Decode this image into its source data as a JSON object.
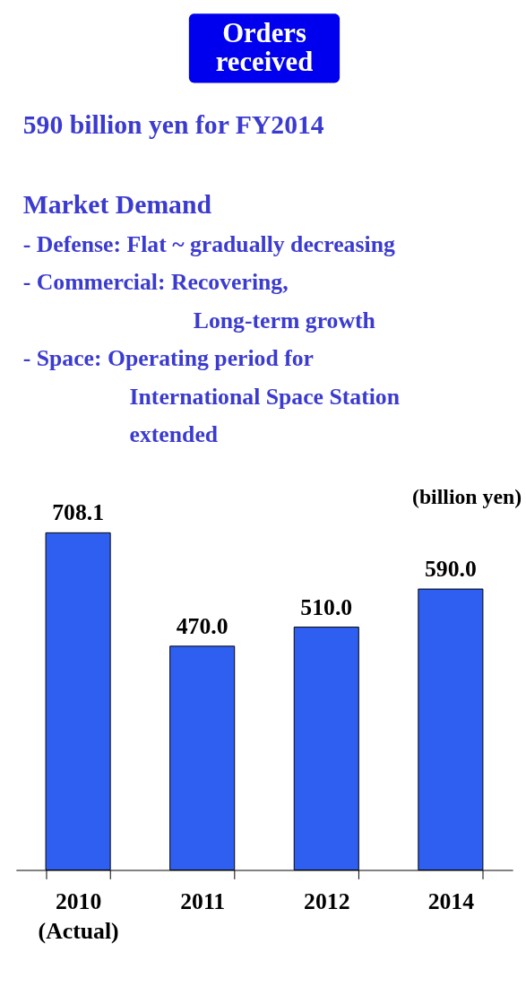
{
  "chart_data": {
    "type": "bar",
    "title": "Orders received",
    "subtitle": "590 billion yen for FY2014",
    "ylabel": "(billion yen)",
    "annotations": [
      "Market Demand",
      "- Defense: Flat ~ gradually decreasing",
      "- Commercial: Recovering,\nLong-term growth",
      "- Space: Operating period for\nInternational Space Station\nextended"
    ],
    "categories": [
      "2010 (Actual)",
      "2011",
      "2012",
      null,
      "2014"
    ],
    "values": [
      708.1,
      470.0,
      510.0,
      null,
      590.0
    ],
    "color": "#2f5ff0",
    "value_labels": [
      "708.1",
      "470.0",
      "510.0",
      null,
      "590.0"
    ]
  }
}
